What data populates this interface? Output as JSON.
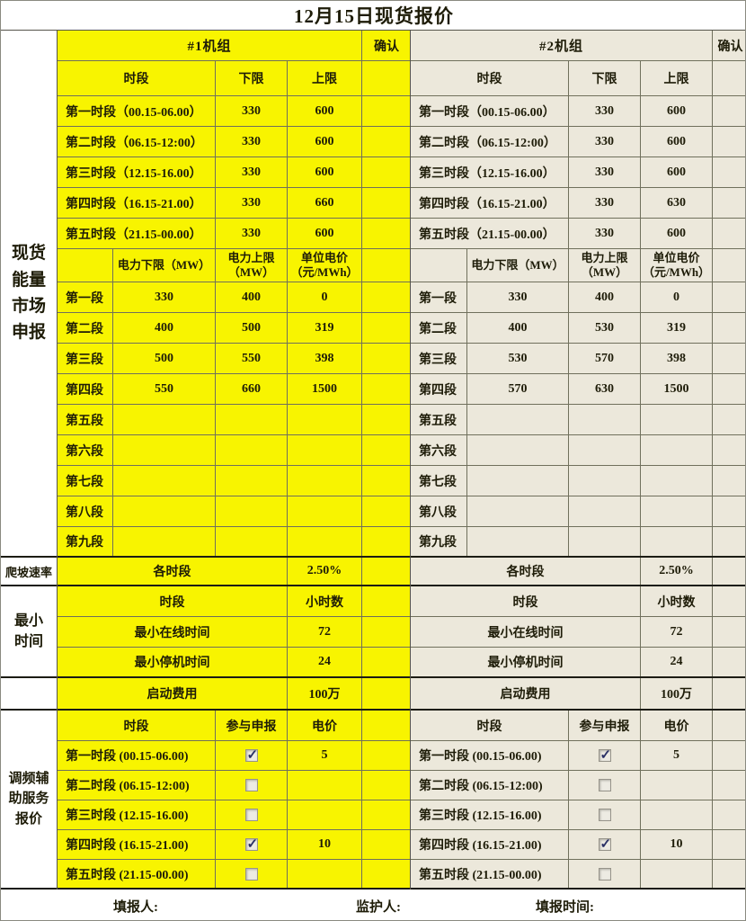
{
  "title": "12月15日现货报价",
  "colors": {
    "unit1_bg": "#f8f400",
    "unit2_bg": "#ece8db",
    "checkmark": "#2b3166",
    "grid_line": "#70705c"
  },
  "sidebar": {
    "energy_label": "现货\n能量\n市场\n申报",
    "ramp_label": "爬坡速率",
    "min_time_label": "最小\n时间",
    "freq_label": "调频辅\n助服务\n报价"
  },
  "footer": {
    "filler": "填报人:",
    "supervisor": "监护人:",
    "fill_time": "填报时间:"
  },
  "units": [
    {
      "name": "#1机组",
      "confirm_label": "确认",
      "limits": {
        "period_header": "时段",
        "lower_header": "下限",
        "upper_header": "上限",
        "rows": [
          {
            "period": "第一时段（00.15-06.00）",
            "lower": "330",
            "upper": "600"
          },
          {
            "period": "第二时段（06.15-12:00）",
            "lower": "330",
            "upper": "600"
          },
          {
            "period": "第三时段（12.15-16.00）",
            "lower": "330",
            "upper": "600"
          },
          {
            "period": "第四时段（16.15-21.00）",
            "lower": "330",
            "upper": "660"
          },
          {
            "period": "第五时段（21.15-00.00）",
            "lower": "330",
            "upper": "600"
          }
        ]
      },
      "segments": {
        "power_min_header": "电力下限（MW）",
        "power_max_header": "电力上限\n（MW）",
        "price_header": "单位电价\n（元/MWh）",
        "rows": [
          {
            "label": "第一段",
            "min": "330",
            "max": "400",
            "price": "0"
          },
          {
            "label": "第二段",
            "min": "400",
            "max": "500",
            "price": "319"
          },
          {
            "label": "第三段",
            "min": "500",
            "max": "550",
            "price": "398"
          },
          {
            "label": "第四段",
            "min": "550",
            "max": "660",
            "price": "1500"
          },
          {
            "label": "第五段",
            "min": "",
            "max": "",
            "price": ""
          },
          {
            "label": "第六段",
            "min": "",
            "max": "",
            "price": ""
          },
          {
            "label": "第七段",
            "min": "",
            "max": "",
            "price": ""
          },
          {
            "label": "第八段",
            "min": "",
            "max": "",
            "price": ""
          },
          {
            "label": "第九段",
            "min": "",
            "max": "",
            "price": ""
          }
        ]
      },
      "ramp": {
        "label": "各时段",
        "value": "2.50%"
      },
      "min_time": {
        "period_header": "时段",
        "hours_header": "小时数",
        "online_label": "最小在线时间",
        "online_value": "72",
        "offline_label": "最小停机时间",
        "offline_value": "24"
      },
      "startup": {
        "label": "启动费用",
        "value": "100万"
      },
      "freq": {
        "period_header": "时段",
        "participate_header": "参与申报",
        "price_header": "电价",
        "rows": [
          {
            "period": "第一时段 (00.15-06.00)",
            "checked": true,
            "price": "5"
          },
          {
            "period": "第二时段 (06.15-12:00)",
            "checked": false,
            "price": ""
          },
          {
            "period": "第三时段 (12.15-16.00)",
            "checked": false,
            "price": ""
          },
          {
            "period": "第四时段 (16.15-21.00)",
            "checked": true,
            "price": "10"
          },
          {
            "period": "第五时段 (21.15-00.00)",
            "checked": false,
            "price": ""
          }
        ]
      }
    },
    {
      "name": "#2机组",
      "confirm_label": "确认",
      "limits": {
        "period_header": "时段",
        "lower_header": "下限",
        "upper_header": "上限",
        "rows": [
          {
            "period": "第一时段（00.15-06.00）",
            "lower": "330",
            "upper": "600"
          },
          {
            "period": "第二时段（06.15-12:00）",
            "lower": "330",
            "upper": "600"
          },
          {
            "period": "第三时段（12.15-16.00）",
            "lower": "330",
            "upper": "600"
          },
          {
            "period": "第四时段（16.15-21.00）",
            "lower": "330",
            "upper": "630"
          },
          {
            "period": "第五时段（21.15-00.00）",
            "lower": "330",
            "upper": "600"
          }
        ]
      },
      "segments": {
        "power_min_header": "电力下限（MW）",
        "power_max_header": "电力上限\n（MW）",
        "price_header": "单位电价\n（元/MWh）",
        "rows": [
          {
            "label": "第一段",
            "min": "330",
            "max": "400",
            "price": "0"
          },
          {
            "label": "第二段",
            "min": "400",
            "max": "530",
            "price": "319"
          },
          {
            "label": "第三段",
            "min": "530",
            "max": "570",
            "price": "398"
          },
          {
            "label": "第四段",
            "min": "570",
            "max": "630",
            "price": "1500"
          },
          {
            "label": "第五段",
            "min": "",
            "max": "",
            "price": ""
          },
          {
            "label": "第六段",
            "min": "",
            "max": "",
            "price": ""
          },
          {
            "label": "第七段",
            "min": "",
            "max": "",
            "price": ""
          },
          {
            "label": "第八段",
            "min": "",
            "max": "",
            "price": ""
          },
          {
            "label": "第九段",
            "min": "",
            "max": "",
            "price": ""
          }
        ]
      },
      "ramp": {
        "label": "各时段",
        "value": "2.50%"
      },
      "min_time": {
        "period_header": "时段",
        "hours_header": "小时数",
        "online_label": "最小在线时间",
        "online_value": "72",
        "offline_label": "最小停机时间",
        "offline_value": "24"
      },
      "startup": {
        "label": "启动费用",
        "value": "100万"
      },
      "freq": {
        "period_header": "时段",
        "participate_header": "参与申报",
        "price_header": "电价",
        "rows": [
          {
            "period": "第一时段 (00.15-06.00)",
            "checked": true,
            "price": "5"
          },
          {
            "period": "第二时段 (06.15-12:00)",
            "checked": false,
            "price": ""
          },
          {
            "period": "第三时段 (12.15-16.00)",
            "checked": false,
            "price": ""
          },
          {
            "period": "第四时段 (16.15-21.00)",
            "checked": true,
            "price": "10"
          },
          {
            "period": "第五时段 (21.15-00.00)",
            "checked": false,
            "price": ""
          }
        ]
      }
    }
  ]
}
